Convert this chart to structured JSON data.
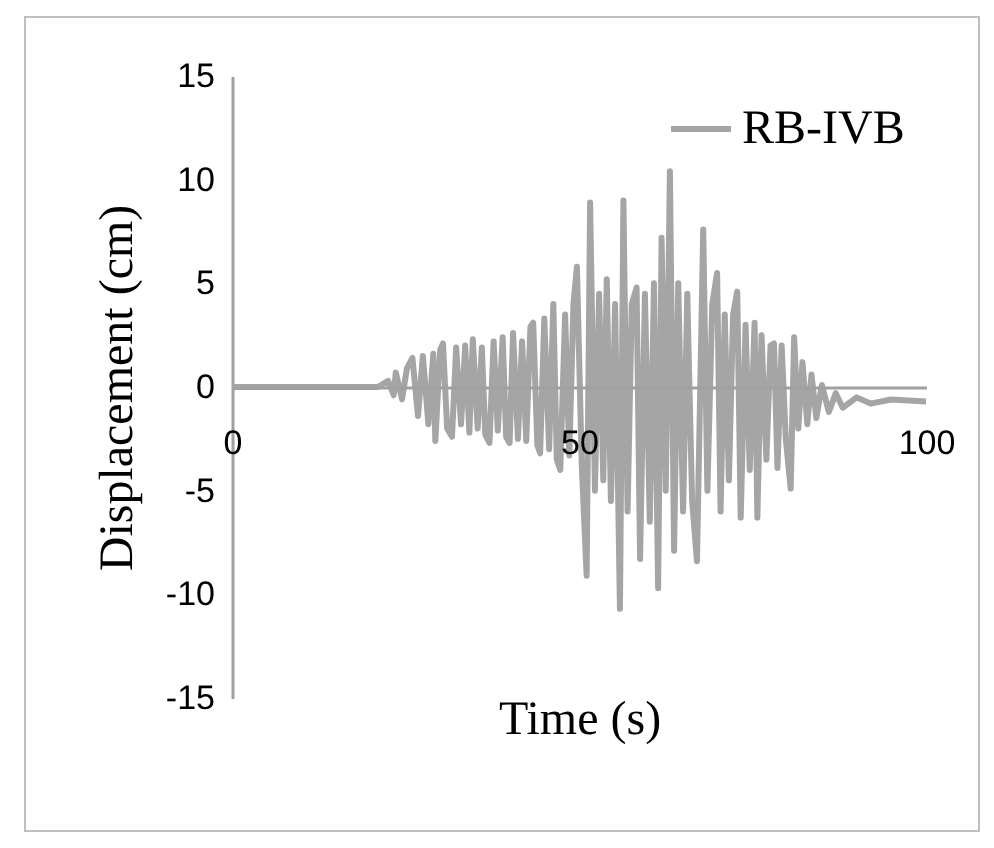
{
  "chart_data": {
    "type": "line",
    "xlabel": "Time (s)",
    "ylabel": "Displacement (cm)",
    "xlim": [
      0,
      100
    ],
    "xticks": [
      0,
      50,
      100
    ],
    "ylim": [
      -15,
      15
    ],
    "yticks": [
      -15,
      -10,
      -5,
      0,
      5,
      10,
      15
    ],
    "grid": false,
    "legend": "top right",
    "series": [
      {
        "name": "RB-IVB",
        "color": "#a5a5a5",
        "x": [
          0,
          21,
          22.5,
          23.3,
          23.6,
          24.5,
          25.2,
          26.0,
          26.8,
          27.5,
          28.3,
          29.0,
          29.3,
          30.0,
          30.4,
          31.0,
          31.7,
          32.3,
          33.0,
          33.6,
          34.2,
          34.7,
          35.4,
          36.0,
          36.5,
          37.1,
          37.7,
          38.3,
          39.0,
          39.5,
          40.0,
          40.5,
          41.2,
          41.8,
          42.4,
          43.0,
          43.4,
          44.0,
          44.4,
          45.0,
          45.7,
          46.3,
          46.8,
          47.3,
          48.0,
          48.6,
          49.2,
          49.7,
          50.4,
          51.1,
          51.6,
          52.3,
          52.9,
          53.5,
          54.0,
          54.6,
          55.2,
          55.9,
          56.4,
          57.0,
          57.6,
          58.3,
          58.8,
          59.5,
          60.2,
          60.8,
          61.4,
          61.9,
          62.5,
          63.1,
          63.7,
          64.3,
          65.0,
          65.6,
          66.3,
          67.0,
          67.9,
          68.5,
          69.2,
          69.9,
          70.4,
          71.0,
          71.6,
          72.2,
          72.8,
          73.3,
          74.0,
          74.6,
          75.3,
          75.7,
          76.3,
          77.0,
          77.6,
          78.1,
          78.6,
          79.2,
          79.8,
          80.5,
          81.0,
          81.6,
          82.2,
          82.9,
          83.5,
          84.2,
          85.0,
          86.0,
          87,
          88,
          90,
          92,
          95,
          100
        ],
        "values": [
          0,
          0,
          0.3,
          -0.4,
          0.7,
          -0.6,
          0.9,
          1.4,
          -1.4,
          1.5,
          -1.8,
          1.6,
          -2.6,
          1.8,
          2.1,
          -2.0,
          -2.4,
          1.9,
          -1.8,
          2.0,
          -2.2,
          2.3,
          -2.0,
          1.9,
          -2.3,
          -2.7,
          2.2,
          -2.1,
          2.4,
          -2.4,
          -2.7,
          2.6,
          -2.5,
          2.2,
          -2.6,
          2.9,
          3.1,
          -2.8,
          -3.2,
          3.3,
          -3.0,
          4.0,
          -3.5,
          -4.0,
          3.5,
          -3.3,
          4.0,
          5.8,
          -3.8,
          -9.1,
          8.9,
          -5.0,
          4.5,
          -4.5,
          5.2,
          -5.5,
          4.0,
          -10.7,
          9.0,
          -6.0,
          4.0,
          4.8,
          -8.3,
          4.5,
          -6.5,
          5.0,
          -9.7,
          7.2,
          -5.0,
          10.4,
          -7.9,
          5.0,
          -6.0,
          4.5,
          -5.5,
          -8.4,
          7.6,
          -5.0,
          4.0,
          5.5,
          -6.0,
          3.5,
          -4.5,
          3.5,
          4.6,
          -6.3,
          3.0,
          -4.0,
          3.1,
          -6.3,
          2.5,
          -3.5,
          2.0,
          2.1,
          -3.9,
          2.0,
          -2.5,
          -4.9,
          2.4,
          -2.0,
          1.2,
          -1.8,
          0.6,
          -1.5,
          0.1,
          -1.2,
          -0.3,
          -1.0,
          -0.5,
          -0.8,
          -0.6,
          -0.7
        ]
      }
    ]
  }
}
